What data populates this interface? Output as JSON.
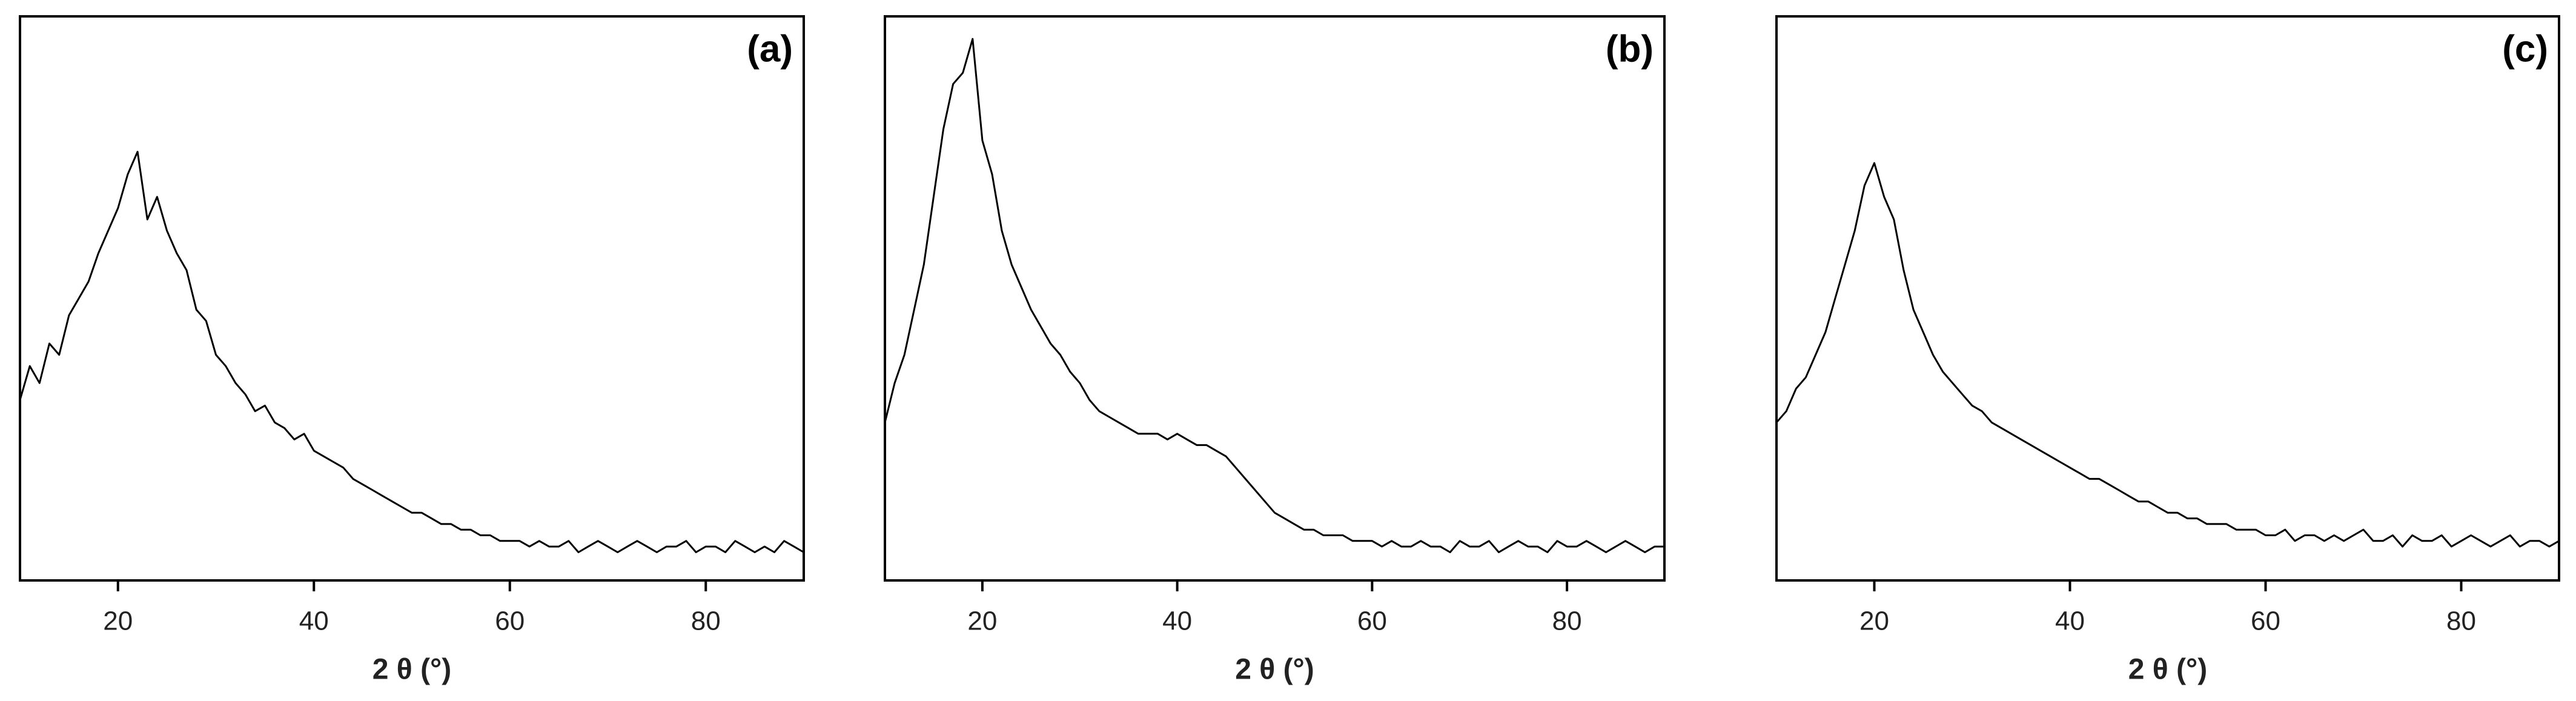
{
  "chart_data": [
    {
      "type": "line",
      "title": "(a)",
      "x_label": "2 θ (°)",
      "xlim": [
        10,
        90
      ],
      "ylim": [
        0,
        100
      ],
      "xticks": [
        20,
        40,
        60,
        80
      ],
      "color": "#000000",
      "x": [
        10,
        11,
        12,
        13,
        14,
        15,
        16,
        17,
        18,
        19,
        20,
        21,
        22,
        23,
        24,
        25,
        26,
        27,
        28,
        29,
        30,
        31,
        32,
        33,
        34,
        35,
        36,
        37,
        38,
        39,
        40,
        41,
        42,
        43,
        44,
        45,
        46,
        47,
        48,
        49,
        50,
        51,
        52,
        53,
        54,
        55,
        56,
        57,
        58,
        59,
        60,
        61,
        62,
        63,
        64,
        65,
        66,
        67,
        68,
        69,
        70,
        71,
        72,
        73,
        74,
        75,
        76,
        77,
        78,
        79,
        80,
        81,
        82,
        83,
        84,
        85,
        86,
        87,
        88,
        89,
        90
      ],
      "values": [
        32,
        38,
        35,
        42,
        40,
        47,
        50,
        53,
        58,
        62,
        66,
        72,
        76,
        64,
        68,
        62,
        58,
        55,
        48,
        46,
        40,
        38,
        35,
        33,
        30,
        31,
        28,
        27,
        25,
        26,
        23,
        22,
        21,
        20,
        18,
        17,
        16,
        15,
        14,
        13,
        12,
        12,
        11,
        10,
        10,
        9,
        9,
        8,
        8,
        7,
        7,
        7,
        6,
        7,
        6,
        6,
        7,
        5,
        6,
        7,
        6,
        5,
        6,
        7,
        6,
        5,
        6,
        6,
        7,
        5,
        6,
        6,
        5,
        7,
        6,
        5,
        6,
        5,
        7,
        6,
        5
      ]
    },
    {
      "type": "line",
      "title": "(b)",
      "x_label": "2 θ (°)",
      "xlim": [
        10,
        90
      ],
      "ylim": [
        0,
        100
      ],
      "xticks": [
        20,
        40,
        60,
        80
      ],
      "color": "#000000",
      "x": [
        10,
        11,
        12,
        13,
        14,
        15,
        16,
        17,
        18,
        19,
        20,
        21,
        22,
        23,
        24,
        25,
        26,
        27,
        28,
        29,
        30,
        31,
        32,
        33,
        34,
        35,
        36,
        37,
        38,
        39,
        40,
        41,
        42,
        43,
        44,
        45,
        46,
        47,
        48,
        49,
        50,
        51,
        52,
        53,
        54,
        55,
        56,
        57,
        58,
        59,
        60,
        61,
        62,
        63,
        64,
        65,
        66,
        67,
        68,
        69,
        70,
        71,
        72,
        73,
        74,
        75,
        76,
        77,
        78,
        79,
        80,
        81,
        82,
        83,
        84,
        85,
        86,
        87,
        88,
        89,
        90
      ],
      "values": [
        28,
        35,
        40,
        48,
        56,
        68,
        80,
        88,
        90,
        96,
        78,
        72,
        62,
        56,
        52,
        48,
        45,
        42,
        40,
        37,
        35,
        32,
        30,
        29,
        28,
        27,
        26,
        26,
        26,
        25,
        26,
        25,
        24,
        24,
        23,
        22,
        20,
        18,
        16,
        14,
        12,
        11,
        10,
        9,
        9,
        8,
        8,
        8,
        7,
        7,
        7,
        6,
        7,
        6,
        6,
        7,
        6,
        6,
        5,
        7,
        6,
        6,
        7,
        5,
        6,
        7,
        6,
        6,
        5,
        7,
        6,
        6,
        7,
        6,
        5,
        6,
        7,
        6,
        5,
        6,
        6
      ]
    },
    {
      "type": "line",
      "title": "(c)",
      "x_label": "2 θ (°)",
      "xlim": [
        10,
        90
      ],
      "ylim": [
        0,
        100
      ],
      "xticks": [
        20,
        40,
        60,
        80
      ],
      "color": "#000000",
      "x": [
        10,
        11,
        12,
        13,
        14,
        15,
        16,
        17,
        18,
        19,
        20,
        21,
        22,
        23,
        24,
        25,
        26,
        27,
        28,
        29,
        30,
        31,
        32,
        33,
        34,
        35,
        36,
        37,
        38,
        39,
        40,
        41,
        42,
        43,
        44,
        45,
        46,
        47,
        48,
        49,
        50,
        51,
        52,
        53,
        54,
        55,
        56,
        57,
        58,
        59,
        60,
        61,
        62,
        63,
        64,
        65,
        66,
        67,
        68,
        69,
        70,
        71,
        72,
        73,
        74,
        75,
        76,
        77,
        78,
        79,
        80,
        81,
        82,
        83,
        84,
        85,
        86,
        87,
        88,
        89,
        90
      ],
      "values": [
        28,
        30,
        34,
        36,
        40,
        44,
        50,
        56,
        62,
        70,
        74,
        68,
        64,
        55,
        48,
        44,
        40,
        37,
        35,
        33,
        31,
        30,
        28,
        27,
        26,
        25,
        24,
        23,
        22,
        21,
        20,
        19,
        18,
        18,
        17,
        16,
        15,
        14,
        14,
        13,
        12,
        12,
        11,
        11,
        10,
        10,
        10,
        9,
        9,
        9,
        8,
        8,
        9,
        7,
        8,
        8,
        7,
        8,
        7,
        8,
        9,
        7,
        7,
        8,
        6,
        8,
        7,
        7,
        8,
        6,
        7,
        8,
        7,
        6,
        7,
        8,
        6,
        7,
        7,
        6,
        7
      ]
    }
  ]
}
